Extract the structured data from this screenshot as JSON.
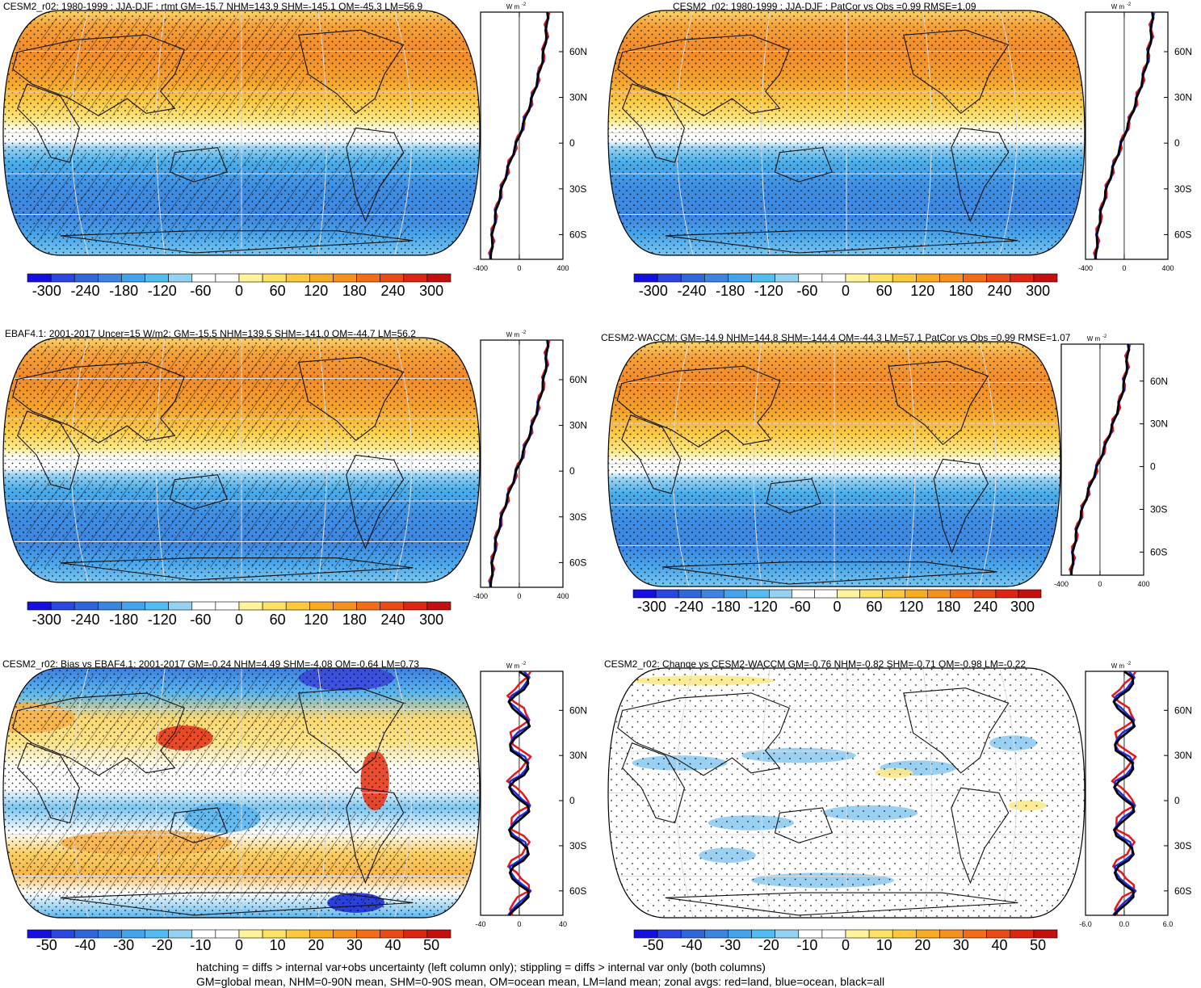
{
  "panels": [
    {
      "id": "p1",
      "title": "CESM2_r02: 1980-1999 : JJA-DJF : rtmt GM=-15.7 NHM=143.9 SHM=-145.1 OM=-45.3 LM=56.9",
      "field": "flux",
      "hatch": true,
      "stipple": "dense",
      "colorbar_labels": [
        "-300",
        "-240",
        "-180",
        "-120",
        "-60",
        "0",
        "60",
        "120",
        "180",
        "240",
        "300"
      ],
      "zonal_ticks": [
        "-400",
        "0",
        "400"
      ]
    },
    {
      "id": "p2",
      "title": "CESM2_r02: 1980-1999 : JJA-DJF : PatCor vs Obs =0.99 RMSE=1.09",
      "field": "flux",
      "hatch": false,
      "stipple": "dense",
      "colorbar_labels": [
        "-300",
        "-240",
        "-180",
        "-120",
        "-60",
        "0",
        "60",
        "120",
        "180",
        "240",
        "300"
      ],
      "zonal_ticks": [
        "-400",
        "0",
        "400"
      ]
    },
    {
      "id": "p3",
      "title": "EBAF4.1: 2001-2017 Uncer=15 W/m2: GM=-15.5 NHM=139.5 SHM=-141.0 OM=-44.7 LM=56.2",
      "field": "flux",
      "hatch": true,
      "stipple": "dense",
      "colorbar_labels": [
        "-300",
        "-240",
        "-180",
        "-120",
        "-60",
        "0",
        "60",
        "120",
        "180",
        "240",
        "300"
      ],
      "zonal_ticks": [
        "-400",
        "0",
        "400"
      ]
    },
    {
      "id": "p4",
      "title": "CESM2-WACCM: GM=-14.9 NHM=144.8 SHM=-144.4 OM=-44.3 LM=57.1 PatCor vs Obs =0.99 RMSE=1.07",
      "field": "flux",
      "hatch": false,
      "stipple": "dense",
      "colorbar_labels": [
        "-300",
        "-240",
        "-180",
        "-120",
        "-60",
        "0",
        "60",
        "120",
        "180",
        "240",
        "300"
      ],
      "zonal_ticks": [
        "-400",
        "0",
        "400"
      ]
    },
    {
      "id": "p5",
      "title": "CESM2_r02: Bias vs EBAF4.1: 2001-2017 GM=-0.24 NHM=4.49 SHM=-4.08 OM=-0.64 LM=0.73",
      "field": "bias",
      "hatch": true,
      "stipple": "dense",
      "colorbar_labels": [
        "-50",
        "-40",
        "-30",
        "-20",
        "-10",
        "0",
        "10",
        "20",
        "30",
        "40",
        "50"
      ],
      "zonal_ticks": [
        "-40",
        "0",
        "40"
      ]
    },
    {
      "id": "p6",
      "title": "CESM2_r02: Change vs CESM2-WACCM GM=-0.76 NHM=-0.82 SHM=-0.71 OM=-0.98 LM=-0.22",
      "field": "change",
      "hatch": false,
      "stipple": "sparse",
      "colorbar_labels": [
        "-50",
        "-40",
        "-30",
        "-20",
        "-10",
        "0",
        "10",
        "20",
        "30",
        "40",
        "50"
      ],
      "zonal_ticks": [
        "-6.0",
        "0.0",
        "6.0"
      ]
    }
  ],
  "zonal_unit": "W m",
  "zonal_unit_exp": "-2",
  "lat_labels": [
    "60N",
    "30N",
    "0",
    "30S",
    "60S"
  ],
  "line_colors": {
    "land": "#e8161b",
    "ocean": "#1d2be0",
    "all": "#000000"
  },
  "colorbar_colors": [
    "#1510e0",
    "#2c46e2",
    "#2f66dc",
    "#3b84e2",
    "#41a4ec",
    "#52bdf2",
    "#94d2f2",
    "#ffffff",
    "#ffffff",
    "#fff49a",
    "#fde264",
    "#fcc93c",
    "#f9ab22",
    "#f7901c",
    "#f36d16",
    "#ea4a14",
    "#dd2612",
    "#c40f0f"
  ],
  "footer": {
    "line1": "hatching = diffs > internal var+obs uncertainty (left column only); stippling = diffs > internal var only (both columns)",
    "line2": "GM=global mean, NHM=0-90N mean, SHM=0-90S mean, OM=ocean mean, LM=land mean; zonal avgs: red=land, blue=ocean, black=all"
  }
}
